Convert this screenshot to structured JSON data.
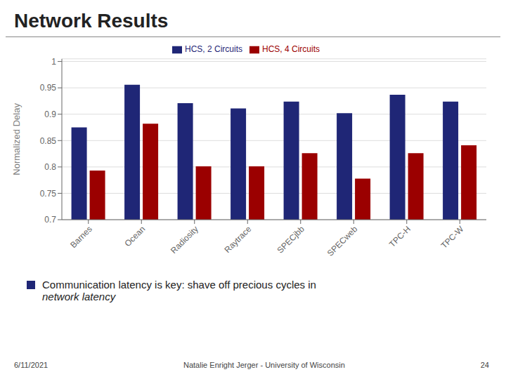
{
  "chart_data": {
    "type": "bar",
    "title": "Network Results",
    "categories": [
      "Barnes",
      "Ocean",
      "Radiosity",
      "Raytrace",
      "SPECjbb",
      "SPECweb",
      "TPC-H",
      "TPC-W"
    ],
    "series": [
      {
        "name": "HCS, 2 Circuits",
        "color": "#1f2676",
        "values": [
          0.875,
          0.956,
          0.921,
          0.911,
          0.924,
          0.902,
          0.937,
          0.924
        ]
      },
      {
        "name": "HCS, 4 Circuits",
        "color": "#9b0000",
        "values": [
          0.793,
          0.882,
          0.801,
          0.801,
          0.826,
          0.778,
          0.826,
          0.841
        ]
      }
    ],
    "ylabel": "Normalized Delay",
    "ylim": [
      0.7,
      1.005
    ],
    "yticks": [
      0.7,
      0.75,
      0.8,
      0.85,
      0.9,
      0.95,
      1
    ],
    "grid": true,
    "legend": "top",
    "annotations": [
      "Communication latency is key: shave off precious cycles in",
      "network latency",
      "6/11/2021",
      "Natalie Enright Jerger - University of Wisconsin",
      "24"
    ]
  }
}
